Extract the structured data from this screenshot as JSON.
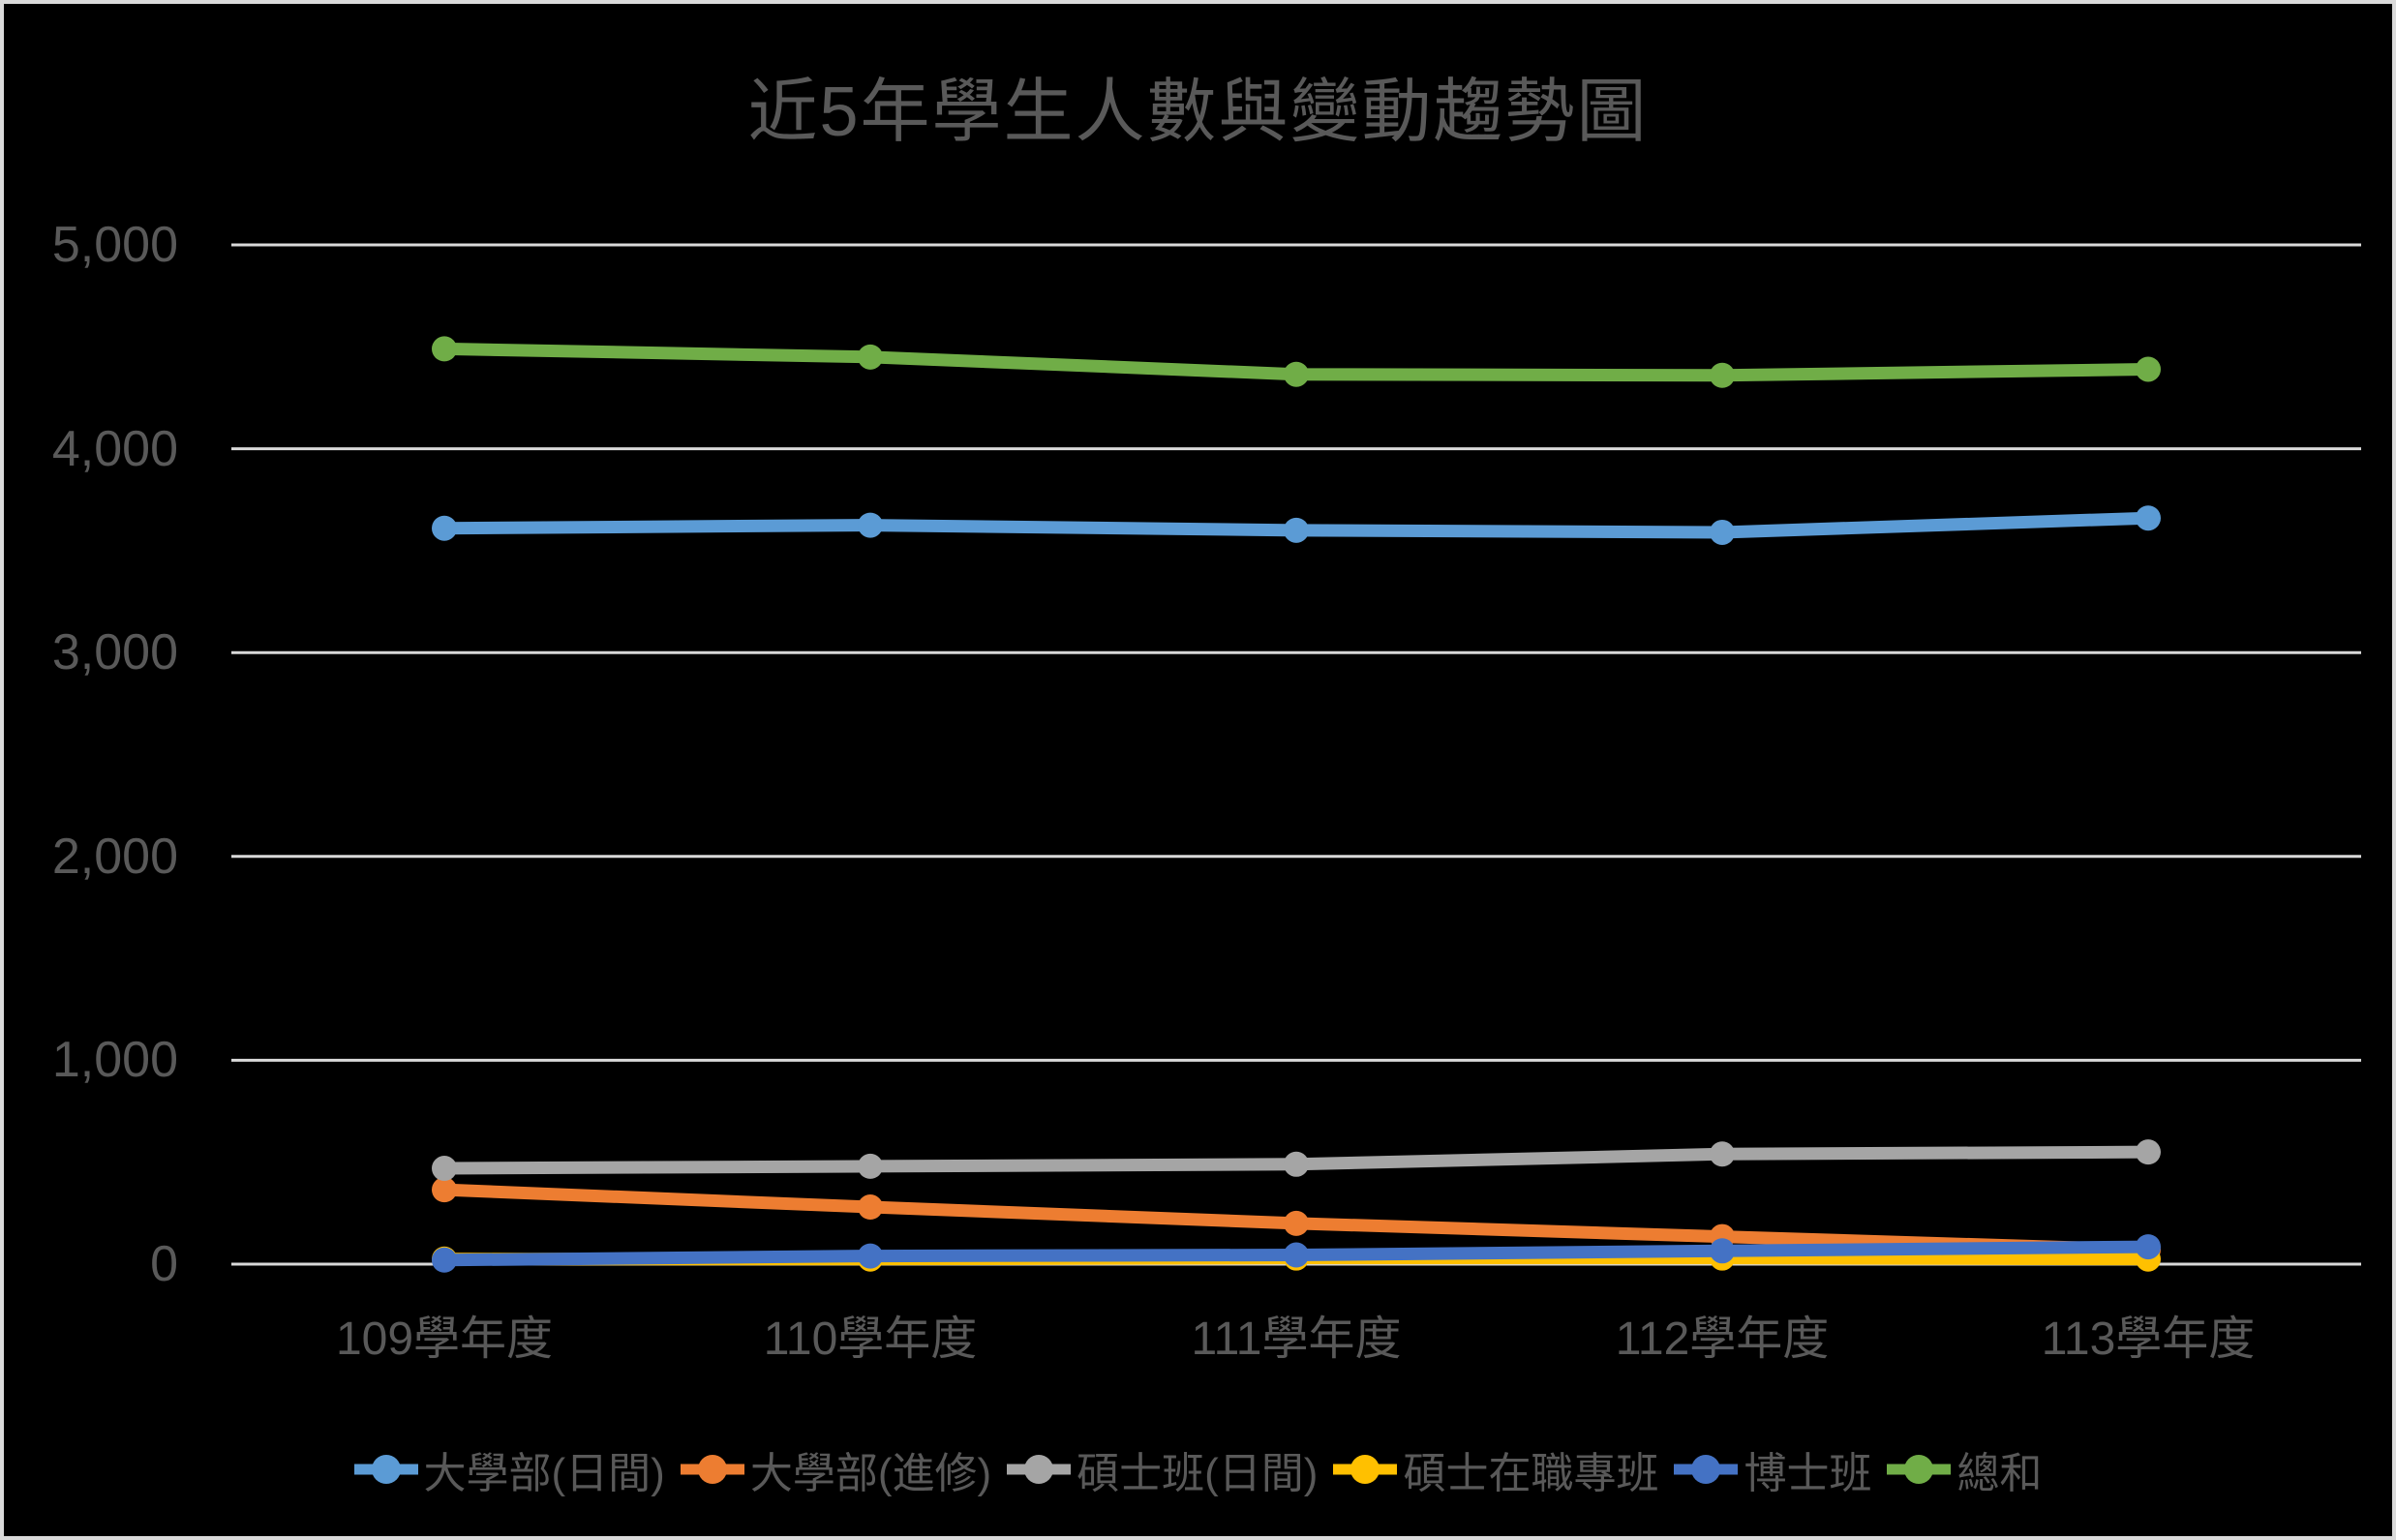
{
  "page": {
    "background_color": "#000000",
    "border_color": "#DADADA",
    "text_color": "#595959",
    "gridline_color": "#D9D9D9"
  },
  "chart_data": {
    "type": "line",
    "title": "近5年學生人數與變動趨勢圖",
    "categories": [
      "109學年度",
      "110學年度",
      "111學年度",
      "112學年度",
      "113學年度"
    ],
    "series": [
      {
        "name": "大學部(日間)",
        "color": "#5B9BD5",
        "values": [
          3610,
          3625,
          3600,
          3590,
          3660
        ]
      },
      {
        "name": "大學部(進修)",
        "color": "#ED7D31",
        "values": [
          365,
          280,
          200,
          135,
          70
        ]
      },
      {
        "name": "碩士班(日間)",
        "color": "#A5A5A5",
        "values": [
          470,
          480,
          490,
          540,
          550
        ]
      },
      {
        "name": "碩士在職專班",
        "color": "#FFC000",
        "values": [
          25,
          25,
          30,
          30,
          25
        ]
      },
      {
        "name": "博士班",
        "color": "#4472C4",
        "values": [
          20,
          40,
          45,
          65,
          85
        ]
      },
      {
        "name": "總和",
        "color": "#70AD47",
        "values": [
          4490,
          4450,
          4365,
          4360,
          4390
        ]
      }
    ],
    "ylim": [
      0,
      5000
    ],
    "ytick_step": 1000,
    "ytick_labels": [
      "0",
      "1,000",
      "2,000",
      "3,000",
      "4,000",
      "5,000"
    ],
    "xlabel": "",
    "ylabel": "",
    "grid": true,
    "legend_position": "bottom",
    "marker": "circle"
  }
}
